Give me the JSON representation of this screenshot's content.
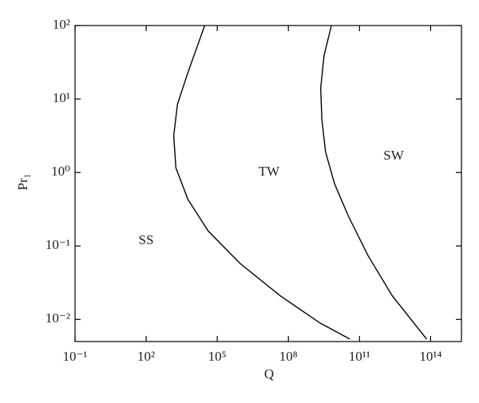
{
  "chart_data": {
    "type": "line",
    "x_label": "Q",
    "y_label": "Pr₁",
    "xlog": true,
    "ylog": true,
    "xlim": [
      0.1,
      2000000000000000.0
    ],
    "ylim": [
      0.005,
      100
    ],
    "xticks": [
      {
        "value": 0.1,
        "label": "10⁻¹"
      },
      {
        "value": 100,
        "label": "10²"
      },
      {
        "value": 100000,
        "label": "10⁵"
      },
      {
        "value": 100000000,
        "label": "10⁸"
      },
      {
        "value": 100000000000,
        "label": "10¹¹"
      },
      {
        "value": 100000000000000,
        "label": "10¹⁴"
      }
    ],
    "yticks": [
      {
        "value": 0.01,
        "label": "10⁻²"
      },
      {
        "value": 0.1,
        "label": "10⁻¹"
      },
      {
        "value": 1,
        "label": "10⁰"
      },
      {
        "value": 10,
        "label": "10¹"
      },
      {
        "value": 100,
        "label": "10²"
      }
    ],
    "annotations": [
      "SS",
      "TW",
      "SW"
    ],
    "series": [
      {
        "color": "#000000",
        "x": [
          29500,
          5800,
          2100,
          1450,
          1800,
          5800,
          41000,
          910000,
          45000000,
          2200000000,
          39000000000
        ],
        "values": [
          100,
          23,
          8.5,
          3.16,
          1.16,
          0.43,
          0.16,
          0.058,
          0.021,
          0.0089,
          0.0054
        ]
      },
      {
        "color": "#000000",
        "x": [
          6500000000,
          3200000000,
          2300000000,
          2600000000,
          3700000000,
          8900000000,
          33000000000,
          230000000000,
          2400000000000,
          68000000000000
        ],
        "values": [
          100,
          39,
          14,
          5.2,
          1.9,
          0.7,
          0.26,
          0.074,
          0.021,
          0.0054
        ]
      }
    ]
  }
}
